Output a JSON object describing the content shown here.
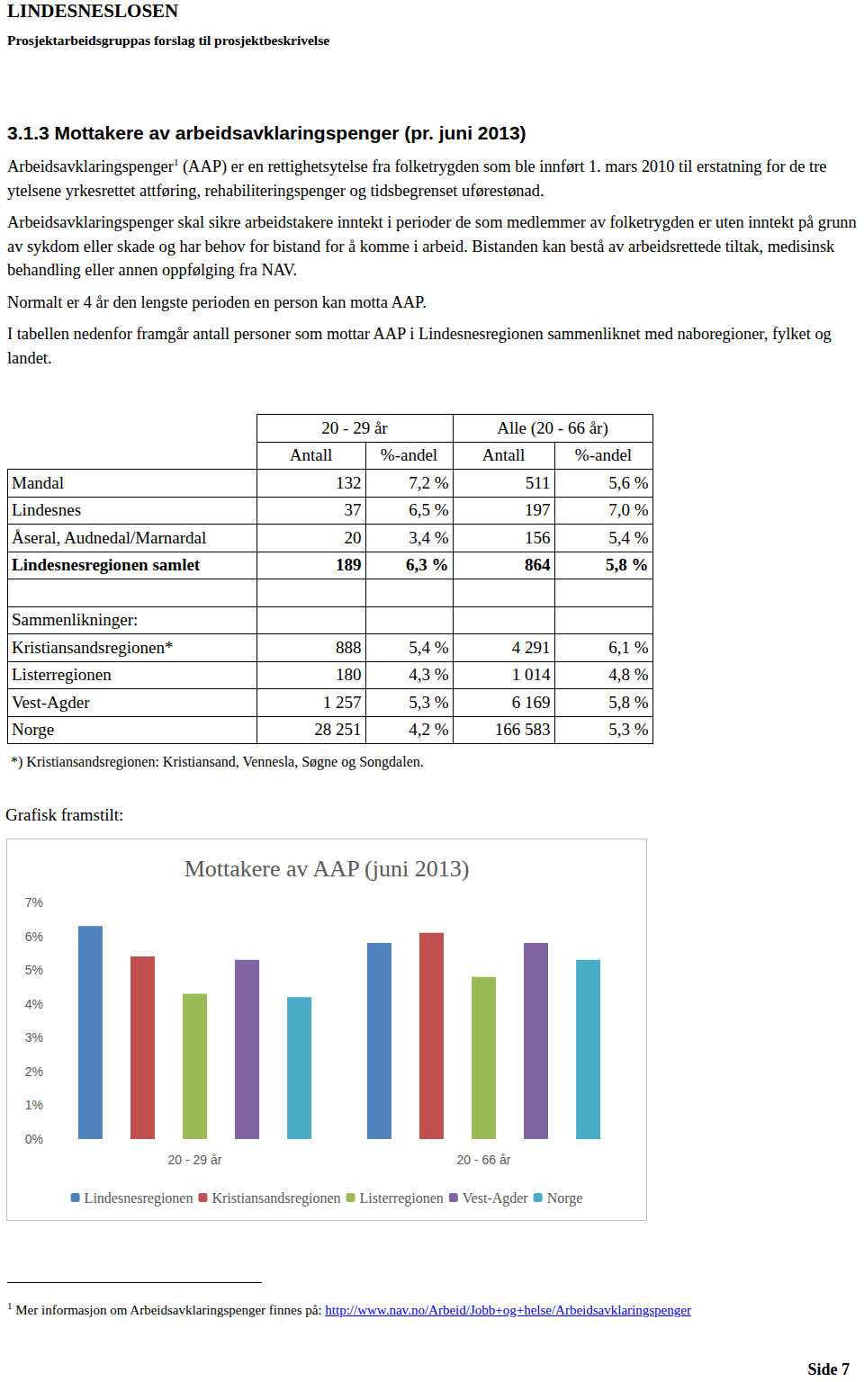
{
  "header": {
    "title": "LINDESNESLOSEN",
    "subtitle": "Prosjektarbeidsgruppas forslag til prosjektbeskrivelse"
  },
  "section_title": "3.1.3 Mottakere av arbeidsavklaringspenger (pr. juni 2013)",
  "paragraphs": [
    {
      "before": "Arbeidsavklaringspenger",
      "sup": "1",
      "after": " (AAP) er en rettighetsytelse fra folketrygden som ble innført 1. mars 2010 til erstatning for de tre ytelsene yrkesrettet attføring, rehabiliteringspenger og tidsbegrenset uførestønad."
    },
    {
      "text": "Arbeidsavklaringspenger skal sikre arbeidstakere inntekt i perioder de som medlemmer av folketrygden er uten inntekt på grunn av sykdom eller skade og har behov for bistand for å komme i arbeid. Bistanden kan bestå av arbeidsrettede tiltak, medisinsk behandling eller annen oppfølging fra NAV."
    },
    {
      "text": "Normalt er 4 år den lengste perioden en person kan motta AAP."
    },
    {
      "text": "I tabellen nedenfor framgår antall personer som mottar AAP i Lindesnesregionen sammenliknet med naboregioner, fylket og landet."
    }
  ],
  "table": {
    "groups": [
      "20 - 29 år",
      "Alle (20 - 66 år)"
    ],
    "subheaders": [
      "Antall",
      "%-andel",
      "Antall",
      "%-andel"
    ],
    "rows": [
      [
        "Mandal",
        "132",
        "7,2 %",
        "511",
        "5,6 %"
      ],
      [
        "Lindesnes",
        "37",
        "6,5 %",
        "197",
        "7,0 %"
      ],
      [
        "Åseral, Audnedal/Marnardal",
        "20",
        "3,4 %",
        "156",
        "5,4 %"
      ],
      [
        "Lindesnesregionen samlet",
        "189",
        "6,3 %",
        "864",
        "5,8 %"
      ],
      [
        null,
        null,
        null,
        null,
        null
      ],
      [
        "Sammenlikninger:",
        null,
        null,
        null,
        null
      ],
      [
        "Kristiansandsregionen*",
        "888",
        "5,4 %",
        "4 291",
        "6,1 %"
      ],
      [
        "Listerregionen",
        "180",
        "4,3 %",
        "1 014",
        "4,8 %"
      ],
      [
        "Vest-Agder",
        "1 257",
        "5,3 %",
        "6 169",
        "5,8 %"
      ],
      [
        "Norge",
        "28 251",
        "4,2 %",
        "166 583",
        "5,3 %"
      ]
    ],
    "note": "*) Kristiansandsregionen: Kristiansand, Vennesla, Søgne og Songdalen."
  },
  "chart_label": "Grafisk framstilt:",
  "chart_data": {
    "type": "bar",
    "title": "Mottakere av AAP (juni 2013)",
    "categories": [
      "20 - 29 år",
      "20 - 66 år"
    ],
    "series": [
      {
        "name": "Lindesnesregionen",
        "color": "#4f81bd",
        "values": [
          6.3,
          5.8
        ]
      },
      {
        "name": "Kristiansandsregionen",
        "color": "#c0504d",
        "values": [
          5.4,
          6.1
        ]
      },
      {
        "name": "Listerregionen",
        "color": "#9bbb59",
        "values": [
          4.3,
          4.8
        ]
      },
      {
        "name": "Vest-Agder",
        "color": "#8064a2",
        "values": [
          5.3,
          5.8
        ]
      },
      {
        "name": "Norge",
        "color": "#4bacc6",
        "values": [
          4.2,
          5.3
        ]
      }
    ],
    "ylim": [
      0,
      7
    ],
    "yticks": [
      {
        "value": 0,
        "label": "0%"
      },
      {
        "value": 1,
        "label": "1%"
      },
      {
        "value": 2,
        "label": "2%"
      },
      {
        "value": 3,
        "label": "3%"
      },
      {
        "value": 4,
        "label": "4%"
      },
      {
        "value": 5,
        "label": "5%"
      },
      {
        "value": 6,
        "label": "6%"
      },
      {
        "value": 7,
        "label": "7%"
      }
    ],
    "grid": false,
    "legend": "bottom",
    "data_labels": false
  },
  "footnote": {
    "mark": "1",
    "text": "Mer informasjon om Arbeidsavklaringspenger finnes på: ",
    "link": "http://www.nav.no/Arbeid/Jobb+og+helse/Arbeidsavklaringspenger"
  },
  "page": "Side 7"
}
